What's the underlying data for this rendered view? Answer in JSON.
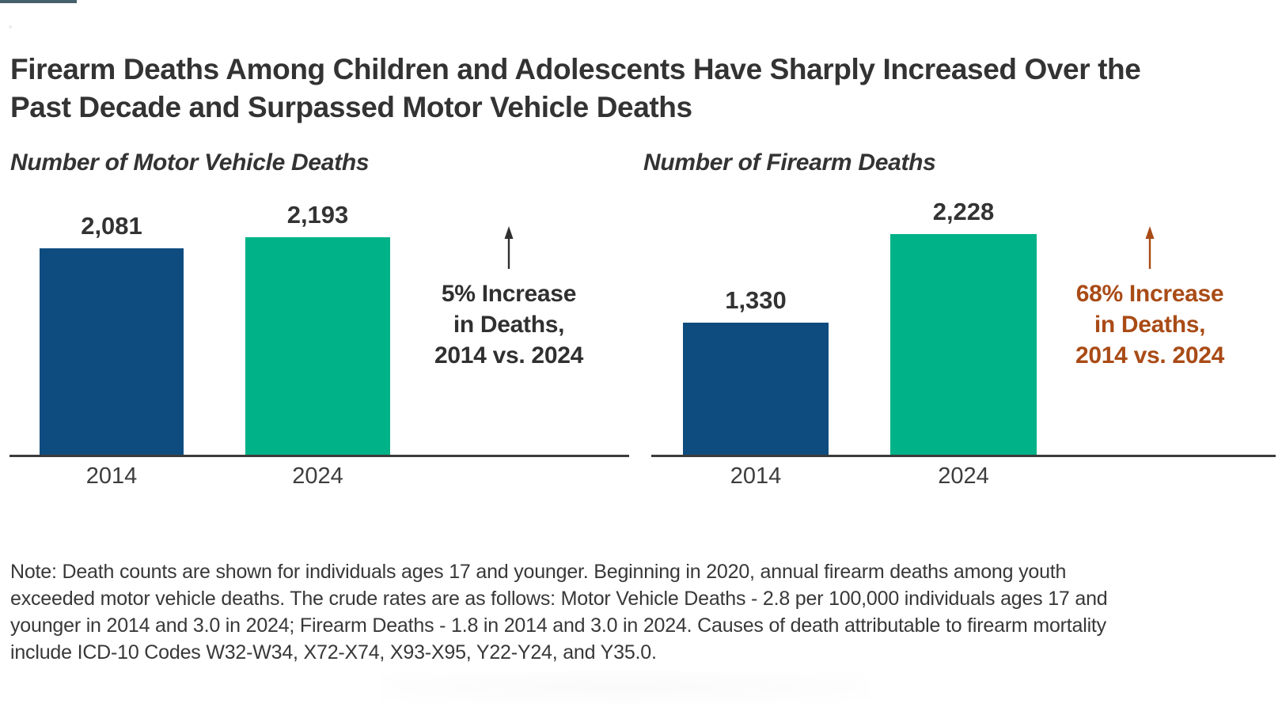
{
  "title_lines": [
    "Firearm Deaths Among Children and Adolescents Have Sharply Increased Over the",
    "Past Decade and Surpassed Motor Vehicle Deaths"
  ],
  "colors": {
    "bar_2014": "#0e4c80",
    "bar_2024": "#00b287",
    "annotation_left_text": "#303030",
    "annotation_right_text": "#a94b16",
    "axis": "#3b3b3b",
    "ink": "#333333",
    "topbar": "#47616c"
  },
  "charts": [
    {
      "subtitle": "Number of Motor Vehicle Deaths",
      "bars": [
        {
          "year": "2014",
          "value": 2081,
          "label": "2,081"
        },
        {
          "year": "2024",
          "value": 2193,
          "label": "2,193"
        }
      ],
      "annotation": {
        "lines": [
          "5% Increase",
          "in Deaths,",
          "2014 vs. 2024"
        ]
      }
    },
    {
      "subtitle": "Number of Firearm Deaths",
      "bars": [
        {
          "year": "2014",
          "value": 1330,
          "label": "1,330"
        },
        {
          "year": "2024",
          "value": 2228,
          "label": "2,228"
        }
      ],
      "annotation": {
        "lines": [
          "68% Increase",
          "in Deaths,",
          "2014 vs. 2024"
        ]
      }
    }
  ],
  "note": {
    "lines": [
      "Note: Death counts are shown for individuals ages 17 and younger. Beginning in 2020, annual firearm deaths among youth",
      "exceeded motor vehicle deaths. The crude rates are as follows: Motor Vehicle Deaths - 2.8 per 100,000 individuals ages 17 and",
      "younger in 2014 and 3.0 in 2024; Firearm Deaths - 1.8 in 2014 and 3.0 in 2024. Causes of death attributable to firearm mortality",
      "include ICD-10 Codes W32-W34, X72-X74, X93-X95, Y22-Y24, and Y35.0."
    ]
  },
  "chart_data": [
    {
      "type": "bar",
      "title": "Number of Motor Vehicle Deaths",
      "categories": [
        "2014",
        "2024"
      ],
      "values": [
        2081,
        2193
      ],
      "data_labels": [
        "2,081",
        "2,193"
      ],
      "annotation": "5% Increase in Deaths, 2014 vs. 2024",
      "bar_colors": [
        "#0e4c80",
        "#00b287"
      ],
      "xlabel": "",
      "ylabel": "",
      "ylim": [
        0,
        2300
      ],
      "grid": false,
      "legend": "none",
      "y_axis_hidden": true
    },
    {
      "type": "bar",
      "title": "Number of Firearm Deaths",
      "categories": [
        "2014",
        "2024"
      ],
      "values": [
        1330,
        2228
      ],
      "data_labels": [
        "1,330",
        "2,228"
      ],
      "annotation": "68% Increase in Deaths, 2014 vs. 2024",
      "bar_colors": [
        "#0e4c80",
        "#00b287"
      ],
      "xlabel": "",
      "ylabel": "",
      "ylim": [
        0,
        2300
      ],
      "grid": false,
      "legend": "none",
      "y_axis_hidden": true
    }
  ]
}
